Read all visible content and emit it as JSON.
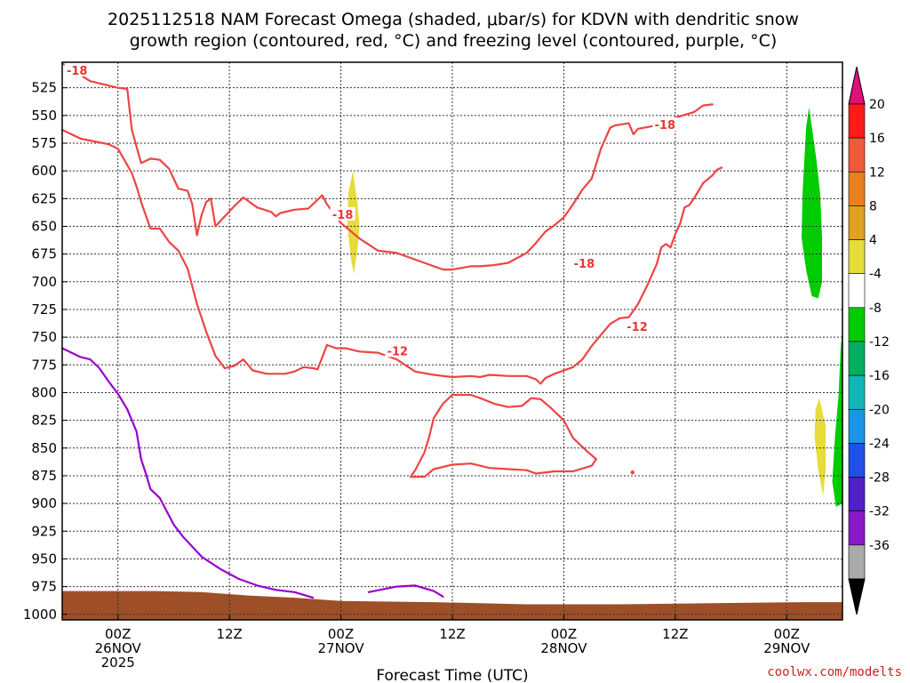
{
  "chart_data": {
    "type": "contour",
    "title_lines": [
      "2025112518 NAM Forecast Omega (shaded, μbar/s) for KDVN with dendritic snow",
      "growth region (contoured, red, °C) and freezing level (contoured, purple, °C)"
    ],
    "xlabel": "Forecast Time (UTC)",
    "ylabel": "",
    "x_ticks": [
      {
        "hour": 6,
        "lines": [
          "00Z",
          "26NOV",
          "2025"
        ]
      },
      {
        "hour": 18,
        "lines": [
          "12Z"
        ]
      },
      {
        "hour": 30,
        "lines": [
          "00Z",
          "27NOV"
        ]
      },
      {
        "hour": 42,
        "lines": [
          "12Z"
        ]
      },
      {
        "hour": 54,
        "lines": [
          "00Z",
          "28NOV"
        ]
      },
      {
        "hour": 66,
        "lines": [
          "12Z"
        ]
      },
      {
        "hour": 78,
        "lines": [
          "00Z",
          "29NOV"
        ]
      }
    ],
    "x_range_hours": [
      0,
      84
    ],
    "y_ticks": [
      525,
      550,
      575,
      600,
      625,
      650,
      675,
      700,
      725,
      750,
      775,
      800,
      825,
      850,
      875,
      900,
      925,
      950,
      975,
      1000
    ],
    "y_range_hpa": [
      502,
      1005
    ],
    "grid": true,
    "colorbar": {
      "labels": [
        "20",
        "16",
        "12",
        "8",
        "4",
        "-4",
        "-8",
        "-12",
        "-16",
        "-20",
        "-24",
        "-28",
        "-32",
        "-36"
      ],
      "colors": [
        "#ff1a1a",
        "#f05a3a",
        "#e8801e",
        "#e0a020",
        "#e6dc3a",
        "#ffffff",
        "#00cc00",
        "#00b060",
        "#10b6b6",
        "#1a96e6",
        "#2050e6",
        "#5020c8",
        "#8818c8",
        "#aaaaaa"
      ],
      "top_arrow_color": "#e0107a",
      "bottom_arrow_color": "#000000"
    },
    "series": [
      {
        "name": "-18",
        "kind": "dgz_contour",
        "color": "#ee4444",
        "points": [
          [
            0,
            503
          ],
          [
            3,
            519
          ],
          [
            6,
            525
          ],
          [
            7,
            526
          ],
          [
            7.5,
            563
          ],
          [
            8.5,
            593
          ],
          [
            9.5,
            589
          ],
          [
            10.5,
            590
          ],
          [
            11.5,
            598
          ],
          [
            12.5,
            616
          ],
          [
            13.5,
            618
          ],
          [
            14,
            630
          ],
          [
            14.5,
            658
          ],
          [
            15,
            640
          ],
          [
            15.5,
            628
          ],
          [
            16,
            625
          ],
          [
            16.5,
            650
          ],
          [
            17.5,
            641
          ],
          [
            18.5,
            632
          ],
          [
            19.5,
            624
          ],
          [
            21,
            633
          ],
          [
            22.5,
            637
          ],
          [
            23,
            641
          ],
          [
            23.5,
            638
          ],
          [
            25,
            635
          ],
          [
            26.5,
            634
          ],
          [
            27.5,
            626
          ],
          [
            28,
            622
          ],
          [
            28.5,
            630
          ],
          [
            30,
            647
          ],
          [
            32,
            661
          ],
          [
            34,
            672
          ],
          [
            36,
            674
          ],
          [
            38,
            680
          ],
          [
            40,
            686
          ],
          [
            41,
            689
          ],
          [
            42,
            689
          ],
          [
            44,
            686
          ],
          [
            45,
            686
          ],
          [
            46.5,
            685
          ],
          [
            48,
            683
          ],
          [
            50,
            674
          ],
          [
            51,
            665
          ],
          [
            52,
            655
          ],
          [
            53,
            649
          ],
          [
            54,
            642
          ],
          [
            55,
            630
          ],
          [
            56,
            617
          ],
          [
            57,
            607
          ],
          [
            58,
            580
          ],
          [
            59,
            561
          ],
          [
            59.5,
            559
          ],
          [
            61,
            557
          ],
          [
            61.5,
            567
          ],
          [
            62,
            562
          ],
          [
            64,
            559
          ],
          [
            66,
            552
          ],
          [
            68,
            547
          ],
          [
            69,
            541
          ],
          [
            70,
            540
          ]
        ]
      },
      {
        "name": "-18",
        "kind": "dgz_contour",
        "color": "#ee4444",
        "points": [
          [
            0,
            563
          ],
          [
            2,
            571
          ],
          [
            5,
            576
          ],
          [
            6,
            580
          ],
          [
            7.5,
            602
          ],
          [
            8,
            614
          ],
          [
            8.5,
            628
          ],
          [
            9.5,
            652
          ],
          [
            10.5,
            652
          ],
          [
            11.5,
            664
          ],
          [
            12.5,
            672
          ],
          [
            13.5,
            688
          ],
          [
            14.5,
            720
          ],
          [
            15.5,
            745
          ],
          [
            16.5,
            767
          ],
          [
            17.5,
            778
          ],
          [
            18.5,
            776
          ],
          [
            19.5,
            770
          ],
          [
            20.5,
            780
          ],
          [
            22,
            783
          ],
          [
            24,
            783
          ],
          [
            25,
            781
          ],
          [
            26,
            777
          ],
          [
            27,
            778
          ],
          [
            27.5,
            779
          ],
          [
            28,
            768
          ],
          [
            28.5,
            757
          ],
          [
            29.5,
            760
          ],
          [
            30.5,
            760
          ],
          [
            32,
            763
          ],
          [
            34,
            764
          ],
          [
            36,
            770
          ],
          [
            38,
            781
          ],
          [
            40,
            784
          ],
          [
            42,
            786
          ],
          [
            44,
            785
          ],
          [
            45,
            786
          ],
          [
            46,
            784
          ],
          [
            48,
            785
          ],
          [
            50,
            785
          ],
          [
            51,
            788
          ],
          [
            51.5,
            792
          ],
          [
            52,
            787
          ],
          [
            53,
            783
          ],
          [
            55,
            777
          ],
          [
            56,
            770
          ],
          [
            57,
            758
          ],
          [
            58,
            748
          ],
          [
            59,
            738
          ],
          [
            60,
            733
          ],
          [
            61,
            732
          ],
          [
            62,
            720
          ],
          [
            63,
            703
          ],
          [
            64,
            684
          ],
          [
            64.5,
            669
          ],
          [
            65,
            666
          ],
          [
            65.5,
            669
          ],
          [
            66,
            657
          ],
          [
            66.5,
            648
          ],
          [
            67,
            633
          ],
          [
            67.5,
            631
          ],
          [
            68,
            625
          ],
          [
            69,
            611
          ],
          [
            70,
            604
          ],
          [
            70.5,
            599
          ],
          [
            71,
            597
          ]
        ]
      },
      {
        "name": "-12",
        "kind": "dgz_contour",
        "color": "#ee4444",
        "points": [
          [
            39,
            876
          ],
          [
            40,
            869
          ],
          [
            42,
            865
          ],
          [
            44,
            864
          ],
          [
            46,
            868
          ],
          [
            48,
            869
          ],
          [
            50,
            870
          ],
          [
            51,
            873
          ],
          [
            53,
            871
          ],
          [
            55,
            871
          ],
          [
            57,
            866
          ],
          [
            57.5,
            860
          ],
          [
            56.5,
            853
          ],
          [
            55,
            841
          ],
          [
            54,
            825
          ],
          [
            52.5,
            813
          ],
          [
            51.5,
            806
          ],
          [
            50.5,
            805
          ],
          [
            49.5,
            812
          ],
          [
            48,
            813
          ],
          [
            46.5,
            810
          ],
          [
            45,
            805
          ],
          [
            44,
            802
          ],
          [
            42,
            802
          ],
          [
            41,
            810
          ],
          [
            40,
            823
          ],
          [
            39.5,
            840
          ],
          [
            39,
            854
          ],
          [
            38,
            870
          ],
          [
            37.5,
            876
          ],
          [
            39,
            876
          ]
        ]
      },
      {
        "name": "0",
        "kind": "freezing_level",
        "color": "#9900cc",
        "points": [
          [
            0,
            760
          ],
          [
            1,
            764
          ],
          [
            2,
            768
          ],
          [
            3,
            770
          ],
          [
            4,
            778
          ],
          [
            5,
            790
          ],
          [
            6,
            801
          ],
          [
            7,
            815
          ],
          [
            8,
            835
          ],
          [
            8.5,
            860
          ],
          [
            9,
            873
          ],
          [
            9.5,
            887
          ],
          [
            10.5,
            895
          ],
          [
            12,
            919
          ],
          [
            13,
            930
          ],
          [
            15,
            948
          ],
          [
            17,
            959
          ],
          [
            19,
            968
          ],
          [
            21,
            974
          ],
          [
            23,
            978
          ],
          [
            25,
            980
          ],
          [
            27,
            985
          ]
        ]
      },
      {
        "name": "0",
        "kind": "freezing_level",
        "color": "#9900cc",
        "points": [
          [
            33,
            980
          ],
          [
            36,
            975
          ],
          [
            38,
            974
          ],
          [
            40,
            979
          ],
          [
            41,
            984
          ]
        ]
      }
    ],
    "contour_labels": [
      {
        "text": "-18",
        "x": 1.6,
        "y": 510
      },
      {
        "text": "-18",
        "x": 30.2,
        "y": 640
      },
      {
        "text": "-18",
        "x": 56.2,
        "y": 684
      },
      {
        "text": "-12",
        "x": 36.1,
        "y": 763
      },
      {
        "text": "-12",
        "x": 61.9,
        "y": 741
      },
      {
        "text": "-18",
        "x": 64.9,
        "y": 559
      }
    ],
    "shaded_regions": [
      {
        "value_range": [
          4,
          8
        ],
        "color": "#e6dc3a",
        "points": [
          [
            31.3,
            600
          ],
          [
            31.8,
            630
          ],
          [
            32,
            650
          ],
          [
            31.8,
            670
          ],
          [
            31.4,
            693
          ],
          [
            31.1,
            680
          ],
          [
            30.7,
            650
          ],
          [
            30.8,
            620
          ]
        ]
      },
      {
        "value_range": [
          -8,
          -4
        ],
        "color": "#00cc00",
        "points": [
          [
            80.4,
            543
          ],
          [
            80.7,
            560
          ],
          [
            81.2,
            590
          ],
          [
            81.6,
            620
          ],
          [
            81.8,
            660
          ],
          [
            81.8,
            700
          ],
          [
            81.4,
            715
          ],
          [
            80.7,
            713
          ],
          [
            80.1,
            690
          ],
          [
            79.6,
            660
          ],
          [
            79.7,
            620
          ],
          [
            79.9,
            590
          ],
          [
            80.1,
            560
          ]
        ]
      },
      {
        "value_range": [
          4,
          8
        ],
        "color": "#e6dc3a",
        "points": [
          [
            81.5,
            805
          ],
          [
            82.2,
            830
          ],
          [
            82.2,
            870
          ],
          [
            81.9,
            893
          ],
          [
            81.4,
            870
          ],
          [
            81,
            840
          ],
          [
            81.1,
            815
          ]
        ]
      },
      {
        "value_range": [
          -8,
          -4
        ],
        "color": "#00cc00",
        "points": [
          [
            84,
            745
          ],
          [
            84,
            900
          ],
          [
            83.3,
            903
          ],
          [
            82.9,
            880
          ],
          [
            83.2,
            840
          ],
          [
            83.6,
            800
          ],
          [
            83.8,
            760
          ]
        ]
      }
    ],
    "terrain_color": "#9e4f28",
    "credit": "coolwx.com/modelts"
  }
}
